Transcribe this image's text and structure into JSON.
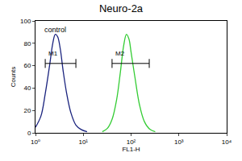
{
  "chart_data": {
    "type": "line",
    "title": "Neuro-2a",
    "x_label": "FL1-H",
    "y_label": "Counts",
    "log": "x",
    "series": [
      {
        "name": "control",
        "color": "#1a237e",
        "x": [
          1,
          1.3,
          1.6,
          2,
          2.3,
          2.6,
          2.9,
          3.3,
          3.8,
          4.5,
          5.5,
          7,
          9,
          12
        ],
        "values": [
          5,
          15,
          35,
          62,
          80,
          88,
          86,
          75,
          55,
          35,
          18,
          7,
          3,
          1
        ]
      },
      {
        "color": "#33cc33",
        "x": [
          25,
          32,
          40,
          50,
          60,
          70,
          80,
          90,
          100,
          120,
          150,
          190,
          250,
          320
        ],
        "values": [
          1,
          4,
          12,
          30,
          55,
          78,
          88,
          84,
          72,
          50,
          25,
          10,
          3,
          1
        ]
      }
    ],
    "gates": [
      {
        "label": "M1",
        "range": [
          1.6,
          7
        ],
        "y": 62
      },
      {
        "label": "M2",
        "range": [
          40,
          240
        ],
        "y": 62
      }
    ],
    "xlim": [
      1,
      10000
    ],
    "xticks": [
      {
        "value": 1,
        "label": "10⁰"
      },
      {
        "value": 10,
        "label": "10¹"
      },
      {
        "value": 100,
        "label": "10²"
      },
      {
        "value": 1000,
        "label": "10³"
      },
      {
        "value": 10000,
        "label": "10⁴"
      }
    ],
    "ylim": [
      0,
      100
    ],
    "yticks": [
      0,
      20,
      40,
      60,
      80,
      100
    ],
    "grid": false
  }
}
